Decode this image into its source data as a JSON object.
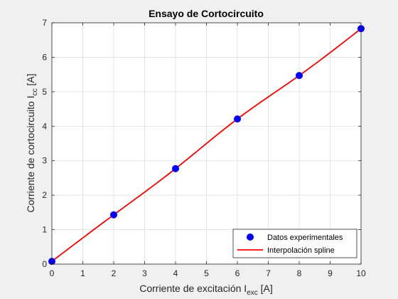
{
  "chart_data": {
    "type": "line",
    "title": "Ensayo de Cortocircuito",
    "xlabel": {
      "main": "Corriente de excitación I",
      "sub": "exc",
      "unit": " [A]"
    },
    "ylabel": {
      "main": "Corriente de cortocircuito I",
      "sub": "cc",
      "unit": " [A]"
    },
    "xlim": [
      0,
      10
    ],
    "ylim": [
      0,
      7
    ],
    "xticks": [
      0,
      1,
      2,
      3,
      4,
      5,
      6,
      7,
      8,
      9,
      10
    ],
    "yticks": [
      0,
      1,
      2,
      3,
      4,
      5,
      6,
      7
    ],
    "grid": true,
    "legend_position": "bottom-right",
    "series": [
      {
        "name": "Datos experimentales",
        "kind": "scatter",
        "color": "#0000ff",
        "x": [
          0,
          2,
          4,
          6,
          8,
          10
        ],
        "y": [
          0.08,
          1.43,
          2.77,
          4.21,
          5.47,
          6.83
        ]
      },
      {
        "name": "Interpolación spline",
        "kind": "line",
        "color": "#ff0000",
        "x": [
          0,
          2,
          4,
          6,
          8,
          10
        ],
        "y": [
          0.08,
          1.43,
          2.77,
          4.21,
          5.47,
          6.83
        ]
      }
    ]
  }
}
